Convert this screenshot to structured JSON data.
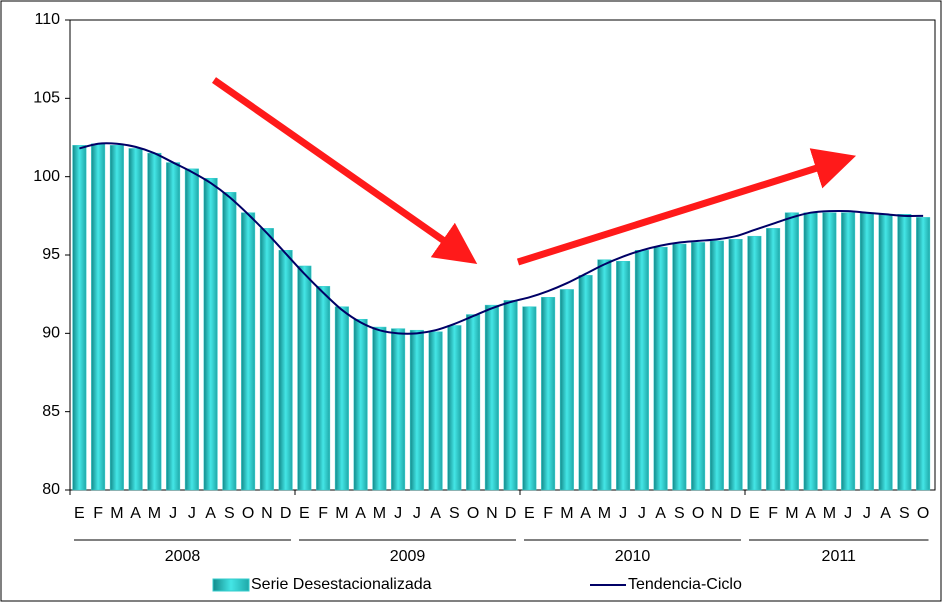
{
  "chart_data": {
    "type": "bar",
    "categories": [
      "E",
      "F",
      "M",
      "A",
      "M",
      "J",
      "J",
      "A",
      "S",
      "O",
      "N",
      "D",
      "E",
      "F",
      "M",
      "A",
      "M",
      "J",
      "J",
      "A",
      "S",
      "O",
      "N",
      "D",
      "E",
      "F",
      "M",
      "A",
      "M",
      "J",
      "J",
      "A",
      "S",
      "O",
      "N",
      "D",
      "E",
      "F",
      "M",
      "A",
      "M",
      "J",
      "J",
      "A",
      "S",
      "O"
    ],
    "year_labels": [
      "2008",
      "2009",
      "2010",
      "2011"
    ],
    "series": [
      {
        "name": "Serie Desestacionalizada",
        "type": "bar",
        "color": "#33cccc",
        "values": [
          102.0,
          102.1,
          102.0,
          101.8,
          101.5,
          100.9,
          100.5,
          99.9,
          99.0,
          97.7,
          96.7,
          95.3,
          94.3,
          93.0,
          91.7,
          90.9,
          90.4,
          90.3,
          90.2,
          90.1,
          90.5,
          91.2,
          91.8,
          92.1,
          91.7,
          92.3,
          92.8,
          93.7,
          94.7,
          94.6,
          95.3,
          95.5,
          95.7,
          95.8,
          95.9,
          96.0,
          96.2,
          96.7,
          97.7,
          97.7,
          97.7,
          97.7,
          97.7,
          97.6,
          97.6,
          97.4
        ]
      },
      {
        "name": "Tendencia-Ciclo",
        "type": "line",
        "color": "#000066",
        "values": [
          101.8,
          102.1,
          102.1,
          101.9,
          101.5,
          100.9,
          100.3,
          99.6,
          98.7,
          97.6,
          96.4,
          95.1,
          93.8,
          92.6,
          91.5,
          90.7,
          90.2,
          90.0,
          90.0,
          90.2,
          90.6,
          91.1,
          91.6,
          92.0,
          92.3,
          92.7,
          93.2,
          93.8,
          94.4,
          94.9,
          95.3,
          95.6,
          95.8,
          95.9,
          96.0,
          96.2,
          96.6,
          97.0,
          97.4,
          97.7,
          97.8,
          97.8,
          97.7,
          97.6,
          97.5,
          97.5
        ]
      }
    ],
    "ylim": [
      80,
      110
    ],
    "yticks": [
      80,
      85,
      90,
      95,
      100,
      105,
      110
    ],
    "grid": false
  }
}
